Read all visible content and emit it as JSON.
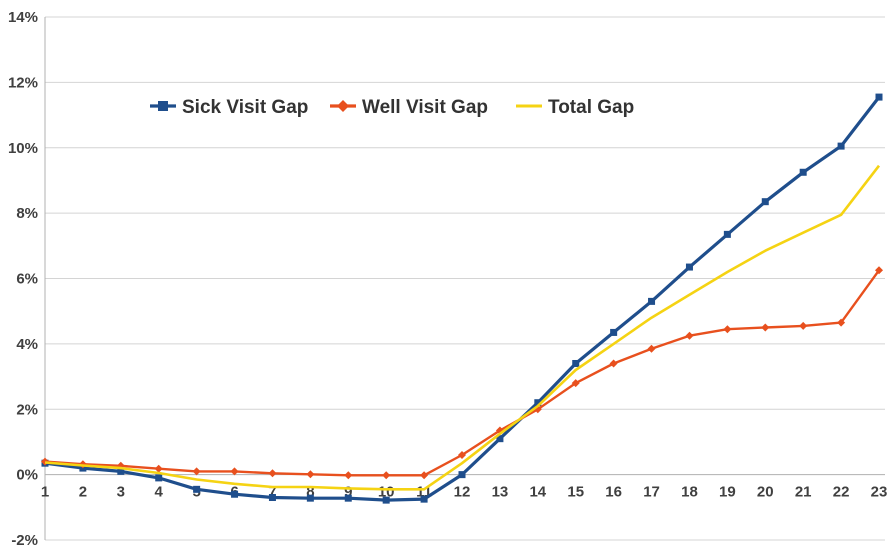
{
  "chart_data": {
    "type": "line",
    "title": "",
    "xlabel": "",
    "ylabel": "",
    "x": [
      1,
      2,
      3,
      4,
      5,
      6,
      7,
      8,
      9,
      10,
      11,
      12,
      13,
      14,
      15,
      16,
      17,
      18,
      19,
      20,
      21,
      22,
      23
    ],
    "ylim": [
      -2,
      14
    ],
    "y_ticks": [
      -2,
      0,
      2,
      4,
      6,
      8,
      10,
      12,
      14
    ],
    "y_tick_labels": [
      "-2%",
      "0%",
      "2%",
      "4%",
      "6%",
      "8%",
      "10%",
      "12%",
      "14%"
    ],
    "x_tick_labels": [
      "1",
      "2",
      "3",
      "4",
      "5",
      "6",
      "7",
      "8",
      "9",
      "10",
      "11",
      "12",
      "13",
      "14",
      "15",
      "16",
      "17",
      "18",
      "19",
      "20",
      "21",
      "22",
      "23"
    ],
    "grid": true,
    "legend_position": "top-left",
    "series": [
      {
        "name": "Sick Visit Gap",
        "color": "#1f4e8c",
        "marker": "square",
        "values": [
          0.35,
          0.2,
          0.1,
          -0.1,
          -0.45,
          -0.6,
          -0.7,
          -0.72,
          -0.72,
          -0.78,
          -0.75,
          0.0,
          1.1,
          2.2,
          3.4,
          4.35,
          5.3,
          6.35,
          7.35,
          8.35,
          9.25,
          10.05,
          11.55
        ]
      },
      {
        "name": "Well Visit Gap",
        "color": "#e8501e",
        "marker": "diamond",
        "values": [
          0.4,
          0.32,
          0.27,
          0.18,
          0.1,
          0.1,
          0.04,
          0.01,
          -0.02,
          -0.02,
          -0.02,
          0.6,
          1.35,
          2.0,
          2.8,
          3.4,
          3.85,
          4.25,
          4.45,
          4.5,
          4.55,
          4.65,
          6.25
        ]
      },
      {
        "name": "Total Gap",
        "color": "#f5d313",
        "marker": "none",
        "values": [
          0.37,
          0.28,
          0.2,
          0.05,
          -0.15,
          -0.28,
          -0.38,
          -0.38,
          -0.42,
          -0.45,
          -0.45,
          0.35,
          1.25,
          2.1,
          3.2,
          4.0,
          4.8,
          5.5,
          6.2,
          6.85,
          7.4,
          7.95,
          9.45
        ]
      }
    ]
  }
}
